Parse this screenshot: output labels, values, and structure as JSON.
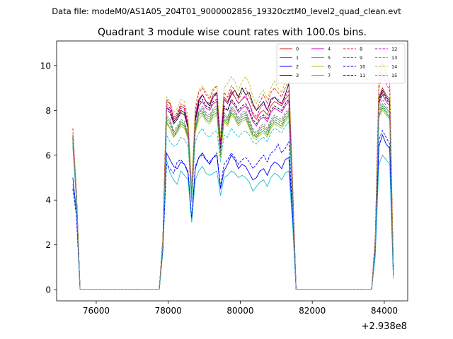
{
  "figure": {
    "suptitle": "Data file: modeM0/AS1A05_204T01_9000002856_19320cztM0_level2_quad_clean.evt"
  },
  "chart_data": {
    "type": "line",
    "title": "Quadrant 3 module wise count rates with 100.0s bins.",
    "xlabel": "",
    "ylabel": "",
    "x_offset_label": "+2.938e8",
    "xlim": [
      74900,
      84650
    ],
    "ylim": [
      -0.5,
      11.1
    ],
    "xticks": [
      76000,
      78000,
      80000,
      82000,
      84000
    ],
    "xtick_labels": [
      "76000",
      "78000",
      "80000",
      "82000",
      "84000"
    ],
    "yticks": [
      0,
      2,
      4,
      6,
      8,
      10
    ],
    "ytick_labels": [
      "0",
      "2",
      "4",
      "6",
      "8",
      "10"
    ],
    "grid": false,
    "legend_placement": "upper-right",
    "legend_columns": 4,
    "x": [
      75350,
      75450,
      75550,
      77750,
      77850,
      77950,
      78050,
      78150,
      78250,
      78350,
      78450,
      78550,
      78650,
      78750,
      78850,
      78950,
      79050,
      79150,
      79250,
      79350,
      79450,
      79550,
      79650,
      79750,
      79850,
      79950,
      80050,
      80150,
      80250,
      80350,
      80450,
      80550,
      80650,
      80750,
      80850,
      80950,
      81050,
      81150,
      81250,
      81350,
      81450,
      81550,
      81650,
      83650,
      83750,
      83850,
      83950,
      84050,
      84150,
      84250
    ],
    "series": [
      {
        "name": "0",
        "color": "#e41a1c",
        "dash": false,
        "values": [
          6.9,
          4.2,
          0.02,
          0.02,
          2.2,
          8.4,
          8.3,
          7.6,
          7.8,
          8.2,
          8.1,
          7.3,
          4.4,
          7.8,
          8.5,
          8.7,
          8.4,
          8.3,
          8.7,
          8.8,
          6.5,
          8.6,
          8.4,
          8.9,
          8.6,
          8.3,
          8.5,
          8.6,
          8.3,
          7.8,
          7.6,
          7.9,
          8.0,
          7.8,
          8.2,
          8.4,
          8.3,
          8.2,
          8.5,
          8.7,
          4.8,
          0.02,
          0.02,
          0.02,
          2.2,
          8.6,
          9.0,
          8.7,
          8.5,
          1.0
        ]
      },
      {
        "name": "1",
        "color": "#2ca02c",
        "dash": false,
        "values": [
          6.4,
          4.0,
          0.02,
          0.02,
          2.0,
          7.5,
          7.2,
          6.8,
          7.1,
          7.4,
          7.3,
          6.8,
          4.0,
          7.1,
          7.8,
          7.9,
          7.6,
          7.5,
          7.8,
          7.9,
          6.0,
          7.6,
          7.4,
          7.9,
          7.7,
          7.4,
          7.6,
          7.7,
          7.3,
          6.9,
          6.8,
          7.0,
          7.1,
          6.9,
          7.3,
          7.5,
          7.4,
          7.3,
          7.6,
          7.8,
          4.3,
          0.02,
          0.02,
          0.02,
          2.0,
          7.8,
          8.1,
          7.9,
          7.7,
          0.9
        ]
      },
      {
        "name": "2",
        "color": "#0000ff",
        "dash": false,
        "values": [
          5.0,
          3.5,
          0.02,
          0.02,
          1.8,
          6.1,
          5.8,
          5.5,
          5.4,
          5.7,
          5.6,
          5.2,
          3.1,
          5.4,
          5.9,
          6.1,
          5.8,
          5.6,
          5.9,
          6.0,
          4.5,
          5.3,
          5.6,
          6.0,
          5.8,
          5.4,
          5.6,
          5.5,
          5.2,
          4.9,
          5.0,
          5.3,
          5.4,
          5.1,
          5.5,
          5.7,
          5.6,
          5.4,
          5.8,
          5.9,
          3.3,
          0.02,
          0.02,
          0.02,
          1.7,
          6.4,
          6.9,
          6.5,
          6.3,
          0.6
        ]
      },
      {
        "name": "3",
        "color": "#000000",
        "dash": false,
        "values": [
          6.8,
          4.3,
          0.02,
          0.02,
          2.2,
          8.1,
          8.0,
          7.5,
          7.7,
          8.0,
          7.9,
          7.2,
          4.3,
          7.6,
          8.4,
          8.7,
          8.4,
          8.2,
          8.6,
          8.8,
          6.4,
          8.5,
          8.3,
          8.7,
          8.9,
          8.6,
          9.0,
          8.7,
          8.8,
          8.3,
          8.0,
          8.2,
          8.4,
          8.0,
          8.5,
          8.6,
          8.4,
          8.3,
          8.7,
          9.2,
          4.7,
          0.02,
          0.02,
          0.02,
          2.2,
          8.5,
          8.9,
          8.6,
          8.4,
          1.0
        ]
      },
      {
        "name": "4",
        "color": "#cc00cc",
        "dash": false,
        "values": [
          6.7,
          4.2,
          0.02,
          0.02,
          2.1,
          8.2,
          8.0,
          7.4,
          7.6,
          7.9,
          7.8,
          7.2,
          4.2,
          7.5,
          8.2,
          8.4,
          8.1,
          8.0,
          8.3,
          8.4,
          6.2,
          8.1,
          8.0,
          8.4,
          8.2,
          7.9,
          8.1,
          8.2,
          7.9,
          7.5,
          7.3,
          7.6,
          7.7,
          7.5,
          7.9,
          8.1,
          8.0,
          7.9,
          8.2,
          8.4,
          4.6,
          0.02,
          0.02,
          0.02,
          2.1,
          8.3,
          8.7,
          8.4,
          8.2,
          0.9
        ]
      },
      {
        "name": "5",
        "color": "#17becf",
        "dash": false,
        "values": [
          4.7,
          3.4,
          0.02,
          0.02,
          1.7,
          5.8,
          5.2,
          4.9,
          4.7,
          5.3,
          5.1,
          4.9,
          3.0,
          4.9,
          5.3,
          5.5,
          5.2,
          5.1,
          5.2,
          5.3,
          4.2,
          5.0,
          5.1,
          5.3,
          5.2,
          5.0,
          5.1,
          5.0,
          4.8,
          4.4,
          4.6,
          4.8,
          4.9,
          4.6,
          5.0,
          5.2,
          5.1,
          4.9,
          5.2,
          5.3,
          3.0,
          0.02,
          0.02,
          0.02,
          1.5,
          5.6,
          6.0,
          5.8,
          5.6,
          0.5
        ]
      },
      {
        "name": "6",
        "color": "#bcbd22",
        "dash": false,
        "values": [
          6.5,
          4.0,
          0.02,
          0.02,
          2.0,
          7.4,
          7.2,
          6.8,
          7.0,
          7.3,
          7.2,
          6.7,
          4.0,
          7.0,
          7.6,
          7.8,
          7.5,
          7.4,
          7.7,
          7.8,
          5.9,
          7.5,
          7.3,
          7.8,
          7.6,
          7.3,
          7.5,
          7.6,
          7.2,
          6.8,
          6.7,
          6.9,
          7.0,
          6.8,
          7.2,
          7.4,
          7.3,
          7.2,
          7.5,
          7.7,
          4.2,
          0.02,
          0.02,
          0.02,
          2.0,
          7.7,
          8.0,
          7.8,
          7.6,
          0.9
        ]
      },
      {
        "name": "7",
        "color": "#7f7f7f",
        "dash": false,
        "values": [
          6.6,
          4.1,
          0.02,
          0.02,
          2.1,
          7.7,
          7.5,
          7.0,
          7.2,
          7.5,
          7.4,
          6.9,
          4.1,
          7.2,
          7.9,
          8.1,
          7.8,
          7.7,
          8.0,
          8.1,
          6.1,
          7.8,
          7.6,
          8.1,
          7.9,
          7.6,
          7.8,
          7.9,
          7.5,
          7.1,
          6.9,
          7.2,
          7.3,
          7.1,
          7.5,
          7.7,
          7.6,
          7.5,
          7.8,
          8.0,
          4.4,
          0.02,
          0.02,
          0.02,
          2.1,
          8.0,
          8.3,
          8.1,
          7.9,
          0.9
        ]
      },
      {
        "name": "8",
        "color": "#e41a1c",
        "dash": true,
        "values": [
          7.2,
          4.4,
          0.02,
          0.02,
          2.3,
          8.5,
          8.3,
          7.7,
          7.9,
          8.3,
          8.2,
          7.5,
          4.5,
          8.0,
          8.8,
          9.0,
          8.7,
          8.5,
          8.9,
          9.1,
          6.7,
          8.8,
          8.6,
          9.1,
          8.9,
          8.5,
          8.8,
          9.0,
          8.6,
          8.2,
          8.0,
          8.4,
          8.7,
          8.3,
          8.8,
          9.0,
          8.8,
          8.6,
          9.0,
          9.3,
          5.0,
          0.02,
          0.02,
          0.02,
          2.4,
          9.3,
          10.2,
          9.6,
          9.2,
          1.1
        ]
      },
      {
        "name": "9",
        "color": "#2ca02c",
        "dash": true,
        "values": [
          6.6,
          4.1,
          0.02,
          0.02,
          2.0,
          7.6,
          7.4,
          6.9,
          7.1,
          7.5,
          7.4,
          6.9,
          4.1,
          7.2,
          7.9,
          8.0,
          7.7,
          7.6,
          7.9,
          8.0,
          6.0,
          7.7,
          7.5,
          8.0,
          7.8,
          7.5,
          7.7,
          7.8,
          7.4,
          7.0,
          6.8,
          7.1,
          7.2,
          7.0,
          7.4,
          7.6,
          7.5,
          7.4,
          7.7,
          7.9,
          4.3,
          0.02,
          0.02,
          0.02,
          2.0,
          7.9,
          8.2,
          8.0,
          7.8,
          0.9
        ]
      },
      {
        "name": "10",
        "color": "#0000ff",
        "dash": true,
        "values": [
          4.5,
          3.3,
          0.02,
          0.02,
          1.8,
          5.6,
          5.4,
          5.2,
          5.7,
          5.8,
          5.6,
          5.3,
          3.2,
          5.5,
          5.9,
          6.0,
          5.8,
          5.7,
          5.9,
          6.1,
          4.6,
          5.6,
          5.8,
          6.1,
          5.9,
          5.6,
          5.8,
          5.9,
          5.7,
          5.4,
          5.6,
          5.8,
          6.0,
          5.7,
          6.1,
          6.2,
          6.5,
          6.1,
          6.3,
          6.6,
          3.6,
          0.02,
          0.02,
          0.02,
          1.8,
          6.7,
          7.1,
          6.8,
          6.5,
          0.7
        ]
      },
      {
        "name": "11",
        "color": "#000000",
        "dash": true,
        "values": [
          6.8,
          4.3,
          0.02,
          0.02,
          2.2,
          8.0,
          7.9,
          7.4,
          7.6,
          7.9,
          7.8,
          7.2,
          4.3,
          7.6,
          8.3,
          8.5,
          8.2,
          8.1,
          8.4,
          8.5,
          6.3,
          8.2,
          8.0,
          8.5,
          8.3,
          8.0,
          8.2,
          8.3,
          8.0,
          7.6,
          7.4,
          7.7,
          7.8,
          7.6,
          8.0,
          8.2,
          8.1,
          8.0,
          8.3,
          8.5,
          4.6,
          0.02,
          0.02,
          0.02,
          2.2,
          8.4,
          8.8,
          8.5,
          8.3,
          1.0
        ]
      },
      {
        "name": "12",
        "color": "#cc00cc",
        "dash": true,
        "values": [
          6.9,
          4.3,
          0.02,
          0.02,
          2.2,
          8.3,
          8.1,
          7.6,
          7.8,
          8.1,
          8.0,
          7.4,
          4.4,
          7.8,
          8.5,
          8.7,
          8.4,
          8.3,
          8.6,
          8.7,
          6.5,
          8.5,
          8.3,
          8.8,
          8.6,
          8.3,
          8.5,
          8.7,
          8.3,
          7.9,
          7.7,
          8.1,
          8.3,
          8.0,
          8.4,
          8.6,
          8.5,
          8.3,
          8.6,
          8.9,
          4.8,
          0.02,
          0.02,
          0.02,
          2.3,
          9.0,
          9.6,
          9.2,
          8.9,
          1.0
        ]
      },
      {
        "name": "13",
        "color": "#17becf",
        "dash": true,
        "values": [
          6.4,
          4.0,
          0.02,
          0.02,
          2.0,
          6.9,
          6.6,
          6.4,
          6.5,
          6.8,
          6.7,
          6.4,
          3.9,
          6.6,
          7.0,
          7.2,
          6.9,
          6.8,
          7.0,
          7.1,
          5.7,
          6.9,
          6.8,
          7.2,
          7.0,
          6.8,
          7.0,
          7.1,
          6.9,
          6.6,
          6.5,
          6.7,
          6.8,
          6.6,
          7.0,
          7.2,
          7.1,
          7.0,
          7.3,
          7.5,
          4.1,
          0.02,
          0.02,
          0.02,
          1.9,
          7.7,
          8.2,
          7.9,
          7.6,
          0.8
        ]
      },
      {
        "name": "14",
        "color": "#bcbd22",
        "dash": true,
        "values": [
          7.0,
          4.4,
          0.02,
          0.02,
          2.3,
          8.6,
          8.4,
          7.9,
          8.1,
          8.5,
          8.4,
          7.7,
          4.6,
          8.2,
          8.9,
          9.1,
          8.8,
          8.6,
          9.0,
          9.1,
          6.8,
          9.0,
          9.2,
          9.5,
          9.3,
          8.9,
          9.3,
          9.5,
          9.2,
          8.6,
          8.3,
          8.7,
          8.9,
          8.5,
          9.0,
          9.3,
          9.0,
          8.8,
          9.3,
          9.7,
          5.1,
          0.02,
          0.02,
          0.02,
          2.3,
          9.4,
          10.1,
          9.7,
          9.3,
          1.1
        ]
      },
      {
        "name": "15",
        "color": "#7f7f7f",
        "dash": true,
        "values": [
          6.7,
          4.2,
          0.02,
          0.02,
          2.1,
          7.8,
          7.6,
          7.1,
          7.3,
          7.6,
          7.5,
          7.0,
          4.2,
          7.3,
          8.0,
          8.2,
          7.9,
          7.8,
          8.1,
          8.2,
          6.2,
          7.9,
          7.7,
          8.2,
          8.0,
          7.7,
          7.9,
          8.0,
          7.6,
          7.2,
          7.0,
          7.3,
          7.4,
          7.2,
          7.6,
          7.8,
          7.7,
          7.6,
          7.9,
          8.1,
          4.5,
          0.02,
          0.02,
          0.02,
          2.1,
          8.1,
          8.5,
          8.2,
          8.0,
          0.9
        ]
      }
    ]
  }
}
